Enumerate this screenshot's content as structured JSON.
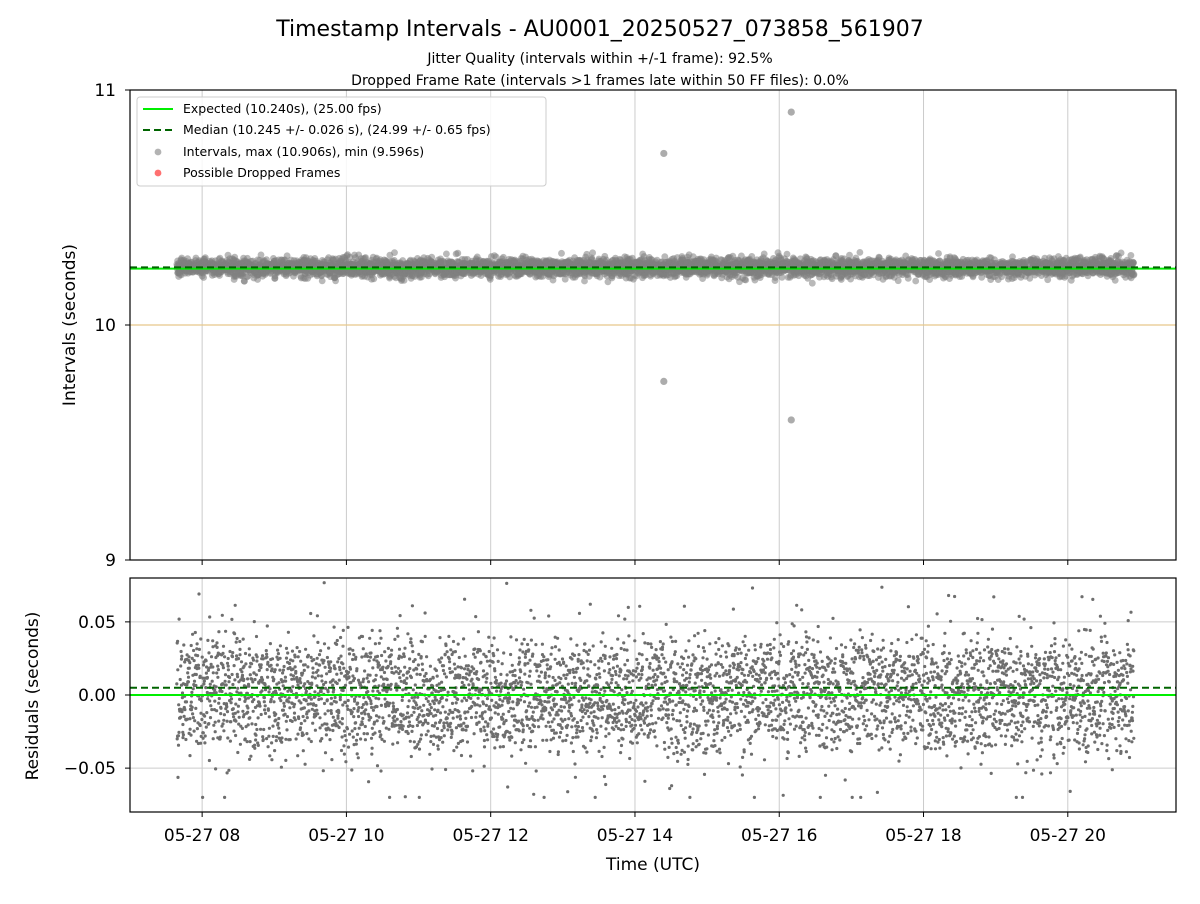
{
  "figure": {
    "title": "Timestamp Intervals - AU0001_20250527_073858_561907",
    "subtitle_1": "Jitter Quality (intervals within +/-1 frame): 92.5%",
    "subtitle_2": "Dropped Frame Rate (intervals >1 frames late within 50 FF files): 0.0%",
    "colors": {
      "expected": "#00ee00",
      "median": "#006400",
      "points": "#808080",
      "dropped": "#ff6060",
      "ten_line": "#e6c88a",
      "grid": "#cccccc"
    }
  },
  "chart_data": [
    {
      "type": "scatter",
      "name": "intervals",
      "ylabel": "Intervals (seconds)",
      "xlim": [
        "2025-05-27 07:00",
        "2025-05-27 21:30"
      ],
      "ylim": [
        9,
        11
      ],
      "yticks": [
        "9",
        "10",
        "11"
      ],
      "xticks": [
        "2025-05-27 08:00",
        "2025-05-27 10:00",
        "2025-05-27 12:00",
        "2025-05-27 14:00",
        "2025-05-27 16:00",
        "2025-05-27 18:00",
        "2025-05-27 20:00"
      ],
      "grid": "x",
      "legend_position": "top-left",
      "legend": [
        {
          "label": "Expected (10.240s), (25.00 fps)",
          "style": "solid-line",
          "color": "#00ee00"
        },
        {
          "label": "Median (10.245 +/- 0.026 s), (24.99 +/- 0.65 fps)",
          "style": "dashed-line",
          "color": "#006400"
        },
        {
          "label": "Intervals, max (10.906s), min (9.596s)",
          "style": "marker",
          "color": "#808080"
        },
        {
          "label": "Possible Dropped Frames",
          "style": "marker",
          "color": "#ff6060"
        }
      ],
      "hlines": [
        {
          "y": 10.24,
          "kind": "expected"
        },
        {
          "y": 10.245,
          "kind": "median"
        },
        {
          "y": 10.0,
          "kind": "reference"
        }
      ],
      "series": {
        "time_range": [
          "2025-05-27 07:39",
          "2025-05-27 20:55"
        ],
        "central_value": 10.245,
        "spread_sd": 0.026,
        "approx_count": 4660
      },
      "outliers": [
        {
          "x": "2025-05-27 14:24",
          "y": 10.73
        },
        {
          "x": "2025-05-27 14:24",
          "y": 9.76
        },
        {
          "x": "2025-05-27 16:10",
          "y": 10.906
        },
        {
          "x": "2025-05-27 16:10",
          "y": 9.596
        }
      ],
      "dropped_frames": []
    },
    {
      "type": "scatter",
      "name": "residuals",
      "xlabel": "Time (UTC)",
      "ylabel": "Residuals (seconds)",
      "xlim": [
        "2025-05-27 07:00",
        "2025-05-27 21:30"
      ],
      "ylim": [
        -0.08,
        0.08
      ],
      "yticks": [
        "−0.05",
        "0.00",
        "0.05"
      ],
      "xtick_labels": [
        "05-27 08",
        "05-27 10",
        "05-27 12",
        "05-27 14",
        "05-27 16",
        "05-27 18",
        "05-27 20"
      ],
      "grid": "both",
      "hlines": [
        {
          "y": 0.0,
          "kind": "expected"
        },
        {
          "y": 0.005,
          "kind": "median"
        }
      ],
      "series": {
        "time_range": [
          "2025-05-27 07:39",
          "2025-05-27 20:55"
        ],
        "central_values": [
          0.02,
          0.0,
          -0.02
        ],
        "range": [
          -0.07,
          0.08
        ],
        "approx_count": 4660
      }
    }
  ]
}
